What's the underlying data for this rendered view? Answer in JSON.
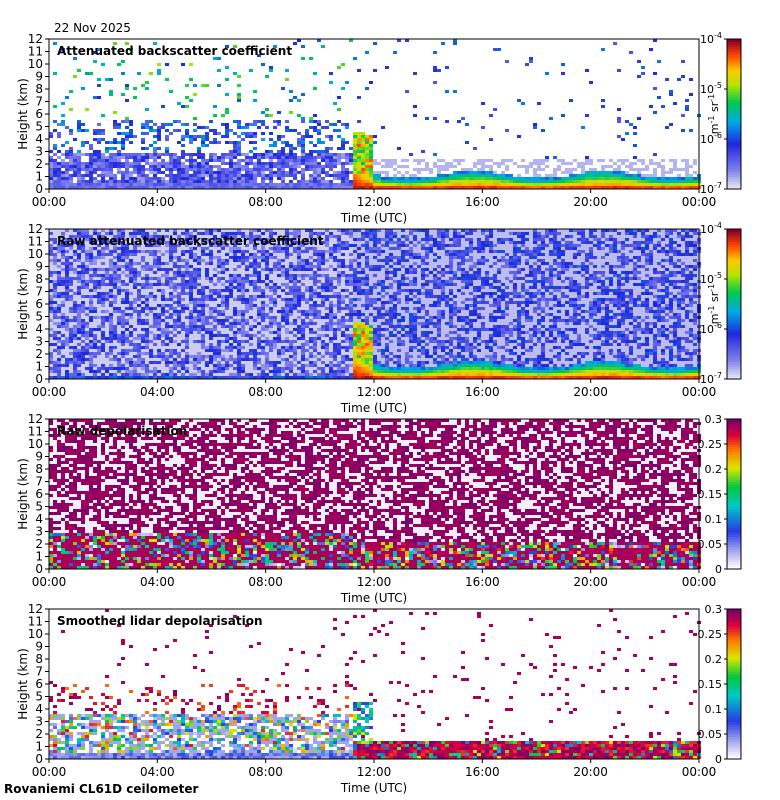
{
  "date_label": "22 Nov 2025",
  "footer_label": "Rovaniemi CL61D ceilometer",
  "chart_data": [
    {
      "type": "heatmap",
      "title": "Attenuated backscatter coefficient",
      "xlabel": "Time (UTC)",
      "ylabel": "Height (km)",
      "x_ticks": [
        "00:00",
        "04:00",
        "08:00",
        "12:00",
        "16:00",
        "20:00",
        "00:00"
      ],
      "x_range_hours": [
        0,
        24
      ],
      "y_ticks": [
        0,
        1,
        2,
        3,
        4,
        5,
        6,
        7,
        8,
        9,
        10,
        11,
        12
      ],
      "ylim": [
        0,
        12
      ],
      "colorbar": {
        "scale": "log",
        "ticks": [
          "10^-7",
          "10^-6",
          "10^-5",
          "10^-4"
        ],
        "range": [
          1e-07,
          0.0001
        ],
        "units": "m-1 sr-1"
      },
      "features": [
        {
          "time_hours": [
            0,
            11.2
          ],
          "height_km": [
            0,
            3.5
          ],
          "level": "low-scattered-blue"
        },
        {
          "time_hours": [
            11.2,
            12.0
          ],
          "height_km": [
            1.2,
            4.3
          ],
          "level": "cloud-high"
        },
        {
          "time_hours": [
            12.0,
            24
          ],
          "height_km": [
            0,
            0.9
          ],
          "level": "boundary-layer-high"
        }
      ]
    },
    {
      "type": "heatmap",
      "title": "Raw attenuated backscatter coefficient",
      "xlabel": "Time (UTC)",
      "ylabel": "Height (km)",
      "x_ticks": [
        "00:00",
        "04:00",
        "08:00",
        "12:00",
        "16:00",
        "20:00",
        "00:00"
      ],
      "x_range_hours": [
        0,
        24
      ],
      "y_ticks": [
        0,
        1,
        2,
        3,
        4,
        5,
        6,
        7,
        8,
        9,
        10,
        11,
        12
      ],
      "ylim": [
        0,
        12
      ],
      "colorbar": {
        "scale": "log",
        "ticks": [
          "10^-7",
          "10^-6",
          "10^-5",
          "10^-4"
        ],
        "range": [
          1e-07,
          0.0001
        ],
        "units": "m-1 sr-1"
      },
      "features": [
        {
          "time_hours": [
            0,
            24
          ],
          "height_km": [
            0,
            12
          ],
          "level": "noise-blue"
        },
        {
          "time_hours": [
            11.2,
            12.0
          ],
          "height_km": [
            1.2,
            4.3
          ],
          "level": "cloud-high"
        },
        {
          "time_hours": [
            12.0,
            24
          ],
          "height_km": [
            0,
            0.9
          ],
          "level": "boundary-layer-high"
        }
      ]
    },
    {
      "type": "heatmap",
      "title": "Raw depolarisation",
      "xlabel": "Time (UTC)",
      "ylabel": "Height (km)",
      "x_ticks": [
        "00:00",
        "04:00",
        "08:00",
        "12:00",
        "16:00",
        "20:00",
        "00:00"
      ],
      "x_range_hours": [
        0,
        24
      ],
      "y_ticks": [
        0,
        1,
        2,
        3,
        4,
        5,
        6,
        7,
        8,
        9,
        10,
        11,
        12
      ],
      "ylim": [
        0,
        12
      ],
      "colorbar": {
        "scale": "linear",
        "ticks": [
          "0",
          "0.05",
          "0.1",
          "0.15",
          "0.2",
          "0.25",
          "0.3"
        ],
        "range": [
          0,
          0.3
        ]
      },
      "features": [
        {
          "time_hours": [
            0,
            24
          ],
          "height_km": [
            0,
            12
          ],
          "level": "noise-purple"
        },
        {
          "time_hours": [
            11.2,
            24
          ],
          "height_km": [
            0,
            2.2
          ],
          "level": "mixed-low"
        }
      ]
    },
    {
      "type": "heatmap",
      "title": "Smoothed lidar depolarisation",
      "xlabel": "Time (UTC)",
      "ylabel": "Height (km)",
      "x_ticks": [
        "00:00",
        "04:00",
        "08:00",
        "12:00",
        "16:00",
        "20:00",
        "00:00"
      ],
      "x_range_hours": [
        0,
        24
      ],
      "y_ticks": [
        0,
        1,
        2,
        3,
        4,
        5,
        6,
        7,
        8,
        9,
        10,
        11,
        12
      ],
      "ylim": [
        0,
        12
      ],
      "colorbar": {
        "scale": "linear",
        "ticks": [
          "0",
          "0.05",
          "0.1",
          "0.15",
          "0.2",
          "0.25",
          "0.3"
        ],
        "range": [
          0,
          0.3
        ]
      },
      "features": [
        {
          "time_hours": [
            0,
            11.2
          ],
          "height_km": [
            0,
            4.5
          ],
          "level": "low-scattered"
        },
        {
          "time_hours": [
            11.2,
            24
          ],
          "height_km": [
            0,
            1.5
          ],
          "level": "high-purple"
        }
      ]
    }
  ]
}
